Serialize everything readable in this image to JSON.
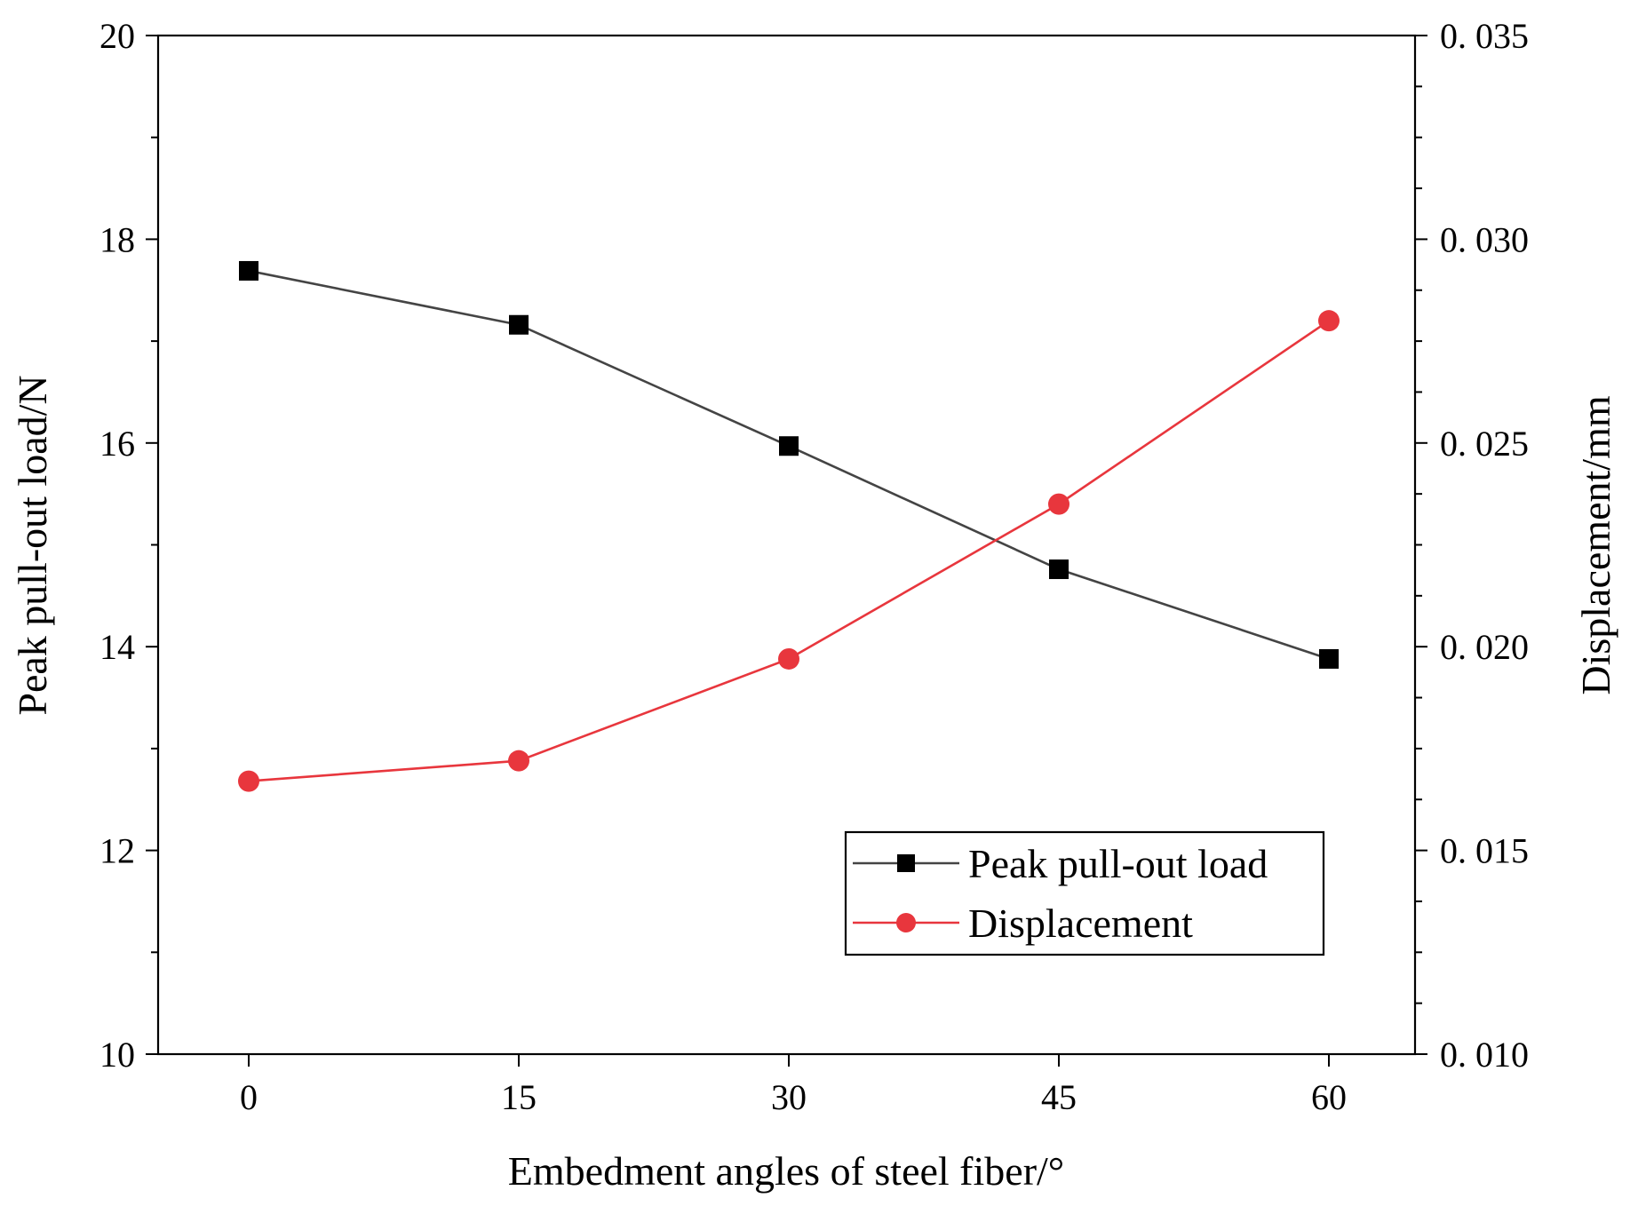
{
  "chart_data": {
    "type": "line",
    "title": "",
    "xlabel": "Embedment angles of steel fiber/°",
    "ylabel": "Peak pull-out load/N",
    "y2label": "Displacement/mm",
    "categories": [
      "0",
      "15",
      "30",
      "45",
      "60"
    ],
    "x": [
      0,
      15,
      30,
      45,
      60
    ],
    "ylim": [
      10,
      20
    ],
    "y2lim": [
      0.01,
      0.035
    ],
    "yticks": [
      "10",
      "12",
      "14",
      "16",
      "18",
      "20"
    ],
    "y2ticks": [
      "0. 010",
      "0. 015",
      "0. 020",
      "0. 025",
      "0. 030",
      "0. 035"
    ],
    "grid": false,
    "legend_position": "bottom-right",
    "series": [
      {
        "name": "Peak pull-out load",
        "axis": "left",
        "marker": "square",
        "color": "#000000",
        "line_color": "#444444",
        "values": [
          17.69,
          17.16,
          15.97,
          14.76,
          13.88
        ]
      },
      {
        "name": "Displacement",
        "axis": "right",
        "marker": "circle",
        "color": "#e8363d",
        "line_color": "#e8363d",
        "values": [
          0.0167,
          0.0172,
          0.0197,
          0.0235,
          0.028
        ]
      }
    ]
  }
}
